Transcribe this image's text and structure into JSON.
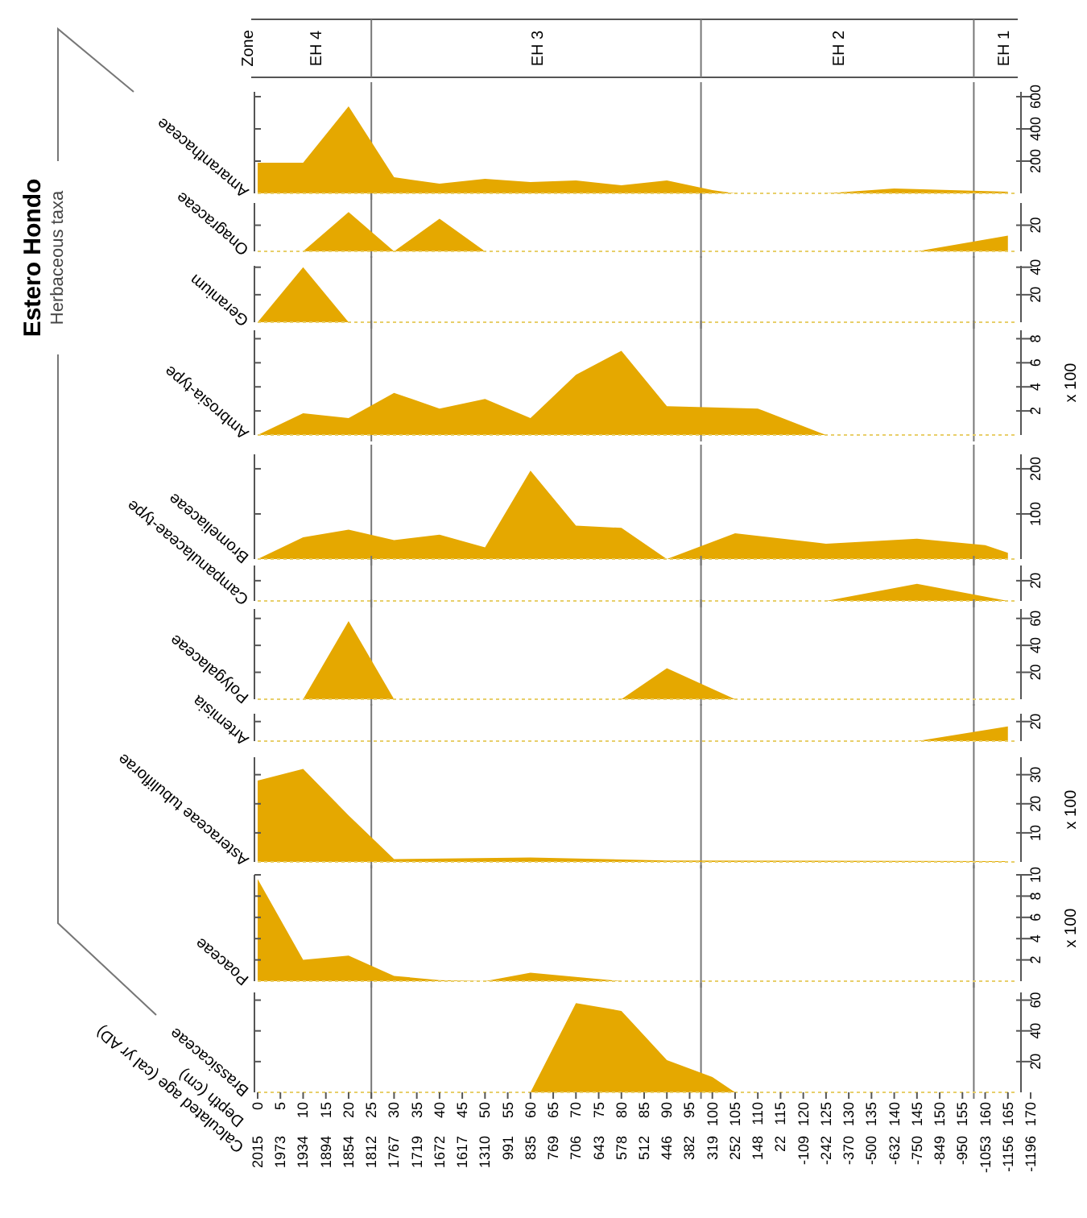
{
  "chart_data": [
    {
      "type": "other",
      "title": "Estero Hondo",
      "subtitle": "Herbaceous taxa"
    },
    {
      "type": "area",
      "title": "Amaranthaceae",
      "color": "#e5a800",
      "x": [
        0,
        10,
        20,
        30,
        40,
        50,
        60,
        70,
        80,
        90,
        100,
        105,
        125,
        140,
        165
      ],
      "values": [
        190,
        190,
        540,
        100,
        60,
        90,
        70,
        80,
        50,
        80,
        20,
        0,
        0,
        30,
        10
      ],
      "xlim": [
        0,
        170
      ],
      "ylim": [
        0,
        630
      ],
      "yticks": [
        200,
        400,
        600
      ],
      "tick_labels": "y",
      "annotations": [
        "Zone",
        "EH 4",
        "EH 3",
        "EH 2",
        "EH 1"
      ],
      "ref_lines": [
        {
          "axis": "x",
          "value": 25
        },
        {
          "axis": "x",
          "value": 97.5
        },
        {
          "axis": "x",
          "value": 157.5
        }
      ]
    },
    {
      "type": "area",
      "title": "Onagraceae",
      "color": "#e5a800",
      "x": [
        10,
        20,
        30,
        40,
        50,
        145,
        165
      ],
      "values": [
        0,
        30,
        0,
        25,
        0,
        0,
        12
      ],
      "xlim": [
        0,
        170
      ],
      "ylim": [
        0,
        37
      ],
      "yticks": [
        20
      ],
      "tick_labels": "y",
      "ref_lines": [
        {
          "axis": "x",
          "value": 25
        },
        {
          "axis": "x",
          "value": 97.5
        },
        {
          "axis": "x",
          "value": 157.5
        }
      ]
    },
    {
      "type": "area",
      "title": "Geranium",
      "color": "#e5a800",
      "x": [
        0,
        10,
        20
      ],
      "values": [
        0,
        40,
        0
      ],
      "xlim": [
        0,
        170
      ],
      "ylim": [
        0,
        41
      ],
      "yticks": [
        20,
        40
      ],
      "tick_labels": "y",
      "ref_lines": [
        {
          "axis": "x",
          "value": 25
        },
        {
          "axis": "x",
          "value": 97.5
        },
        {
          "axis": "x",
          "value": 157.5
        }
      ]
    },
    {
      "type": "area",
      "title": "Ambrosia-type",
      "ylabel": "x 100",
      "color": "#e5a800",
      "x": [
        0,
        10,
        20,
        30,
        40,
        50,
        60,
        70,
        80,
        90,
        100,
        110,
        125
      ],
      "values": [
        0,
        1.8,
        1.4,
        3.5,
        2.2,
        3.0,
        1.4,
        5.0,
        7.0,
        2.4,
        2.3,
        2.2,
        0
      ],
      "xlim": [
        0,
        170
      ],
      "ylim": [
        0,
        8.7
      ],
      "yticks": [
        2,
        4,
        6,
        8
      ],
      "tick_labels": "y",
      "ref_lines": [
        {
          "axis": "x",
          "value": 25
        },
        {
          "axis": "x",
          "value": 97.5
        },
        {
          "axis": "x",
          "value": 157.5
        }
      ]
    },
    {
      "type": "area",
      "title": "Bromeliaceae",
      "color": "#e5a800",
      "x": [
        0,
        10,
        20,
        30,
        40,
        50,
        60,
        70,
        80,
        90,
        105,
        125,
        145,
        160,
        165
      ],
      "values": [
        0,
        48,
        65,
        42,
        54,
        26,
        196,
        74,
        69,
        0,
        57,
        34,
        45,
        31,
        14
      ],
      "xlim": [
        0,
        170
      ],
      "ylim": [
        0,
        232
      ],
      "yticks": [
        100,
        200
      ],
      "tick_labels": "y",
      "ref_lines": [
        {
          "axis": "x",
          "value": 25
        },
        {
          "axis": "x",
          "value": 97.5
        },
        {
          "axis": "x",
          "value": 157.5
        }
      ]
    },
    {
      "type": "area",
      "title": "Campanulaceae-type",
      "color": "#e5a800",
      "x": [
        125,
        145,
        165
      ],
      "values": [
        0,
        17,
        0
      ],
      "xlim": [
        0,
        170
      ],
      "ylim": [
        0,
        35
      ],
      "yticks": [
        20
      ],
      "tick_labels": "y",
      "ref_lines": [
        {
          "axis": "x",
          "value": 25
        },
        {
          "axis": "x",
          "value": 97.5
        },
        {
          "axis": "x",
          "value": 157.5
        }
      ]
    },
    {
      "type": "area",
      "title": "Polygalaceae",
      "color": "#e5a800",
      "x": [
        10,
        20,
        30,
        80,
        90,
        105
      ],
      "values": [
        0,
        58,
        0,
        0,
        23,
        0
      ],
      "xlim": [
        0,
        170
      ],
      "ylim": [
        0,
        67
      ],
      "yticks": [
        20,
        40,
        60
      ],
      "tick_labels": "y",
      "ref_lines": [
        {
          "axis": "x",
          "value": 25
        },
        {
          "axis": "x",
          "value": 97.5
        },
        {
          "axis": "x",
          "value": 157.5
        }
      ]
    },
    {
      "type": "area",
      "title": "Artemisia",
      "color": "#e5a800",
      "x": [
        145,
        165
      ],
      "values": [
        0,
        15
      ],
      "xlim": [
        0,
        170
      ],
      "ylim": [
        0,
        28
      ],
      "yticks": [
        20
      ],
      "tick_labels": "y",
      "ref_lines": [
        {
          "axis": "x",
          "value": 25
        },
        {
          "axis": "x",
          "value": 97.5
        },
        {
          "axis": "x",
          "value": 157.5
        }
      ]
    },
    {
      "type": "area",
      "title": "Asteraceae tubuliflorae",
      "ylabel": "x 100",
      "color": "#e5a800",
      "x": [
        0,
        10,
        20,
        30,
        60,
        90,
        165
      ],
      "values": [
        28,
        32,
        16,
        1,
        1.5,
        0.5,
        0.3
      ],
      "xlim": [
        0,
        170
      ],
      "ylim": [
        0,
        36
      ],
      "yticks": [
        10,
        20,
        30
      ],
      "tick_labels": "y",
      "ref_lines": [
        {
          "axis": "x",
          "value": 25
        },
        {
          "axis": "x",
          "value": 97.5
        },
        {
          "axis": "x",
          "value": 157.5
        }
      ]
    },
    {
      "type": "area",
      "title": "Poaceae",
      "ylabel": "x 100",
      "color": "#e5a800",
      "x": [
        0,
        10,
        20,
        30,
        40,
        50,
        60,
        70,
        80
      ],
      "values": [
        9.6,
        2.0,
        2.4,
        0.5,
        0.1,
        0,
        0.8,
        0.4,
        0
      ],
      "xlim": [
        0,
        170
      ],
      "ylim": [
        0,
        10
      ],
      "yticks": [
        2,
        4,
        6,
        8,
        10
      ],
      "tick_labels": "y",
      "ref_lines": [
        {
          "axis": "x",
          "value": 25
        },
        {
          "axis": "x",
          "value": 97.5
        },
        {
          "axis": "x",
          "value": 157.5
        }
      ]
    },
    {
      "type": "area",
      "title": "Brassicaceae",
      "color": "#e5a800",
      "x": [
        60,
        70,
        80,
        90,
        100,
        105
      ],
      "values": [
        0,
        58,
        53,
        21,
        10,
        0
      ],
      "xlim": [
        0,
        170
      ],
      "ylim": [
        0,
        65
      ],
      "yticks": [
        20,
        40,
        60
      ],
      "xlabel": "Depth (cm)",
      "xticks": [
        0,
        5,
        10,
        15,
        20,
        25,
        30,
        35,
        40,
        45,
        50,
        55,
        60,
        65,
        70,
        75,
        80,
        85,
        90,
        95,
        100,
        105,
        110,
        115,
        120,
        125,
        130,
        135,
        140,
        145,
        150,
        155,
        160,
        165,
        170
      ],
      "annotations": [
        "Calculated age (cal yr AD)",
        "2015",
        "1973",
        "1934",
        "1894",
        "1854",
        "1812",
        "1767",
        "1719",
        "1672",
        "1617",
        "1310",
        "991",
        "835",
        "769",
        "706",
        "643",
        "578",
        "512",
        "446",
        "382",
        "319",
        "252",
        "148",
        "22",
        "-109",
        "-242",
        "-370",
        "-500",
        "-632",
        "-750",
        "-849",
        "-950",
        "-1053",
        "-1156",
        "-1196"
      ],
      "ref_lines": [
        {
          "axis": "x",
          "value": 25
        },
        {
          "axis": "x",
          "value": 97.5
        },
        {
          "axis": "x",
          "value": 157.5
        }
      ]
    }
  ]
}
